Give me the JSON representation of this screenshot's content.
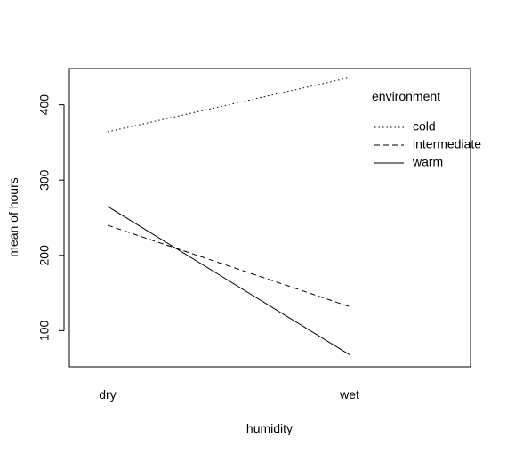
{
  "chart_data": {
    "type": "line",
    "title": "",
    "xlabel": "humidity",
    "ylabel": "mean of  hours",
    "categories": [
      "dry",
      "wet"
    ],
    "y_ticks": [
      100,
      200,
      300,
      400
    ],
    "ylim": [
      52,
      448
    ],
    "grid": false,
    "legend": {
      "title": "environment",
      "placement": "top-right"
    },
    "series": [
      {
        "name": "cold",
        "values": [
          364,
          436
        ],
        "linestyle": "dotted"
      },
      {
        "name": "intermediate",
        "values": [
          240,
          132
        ],
        "linestyle": "dashed"
      },
      {
        "name": "warm",
        "values": [
          265,
          68
        ],
        "linestyle": "solid"
      }
    ],
    "colors": {
      "line": "#000000",
      "background": "#ffffff"
    }
  }
}
